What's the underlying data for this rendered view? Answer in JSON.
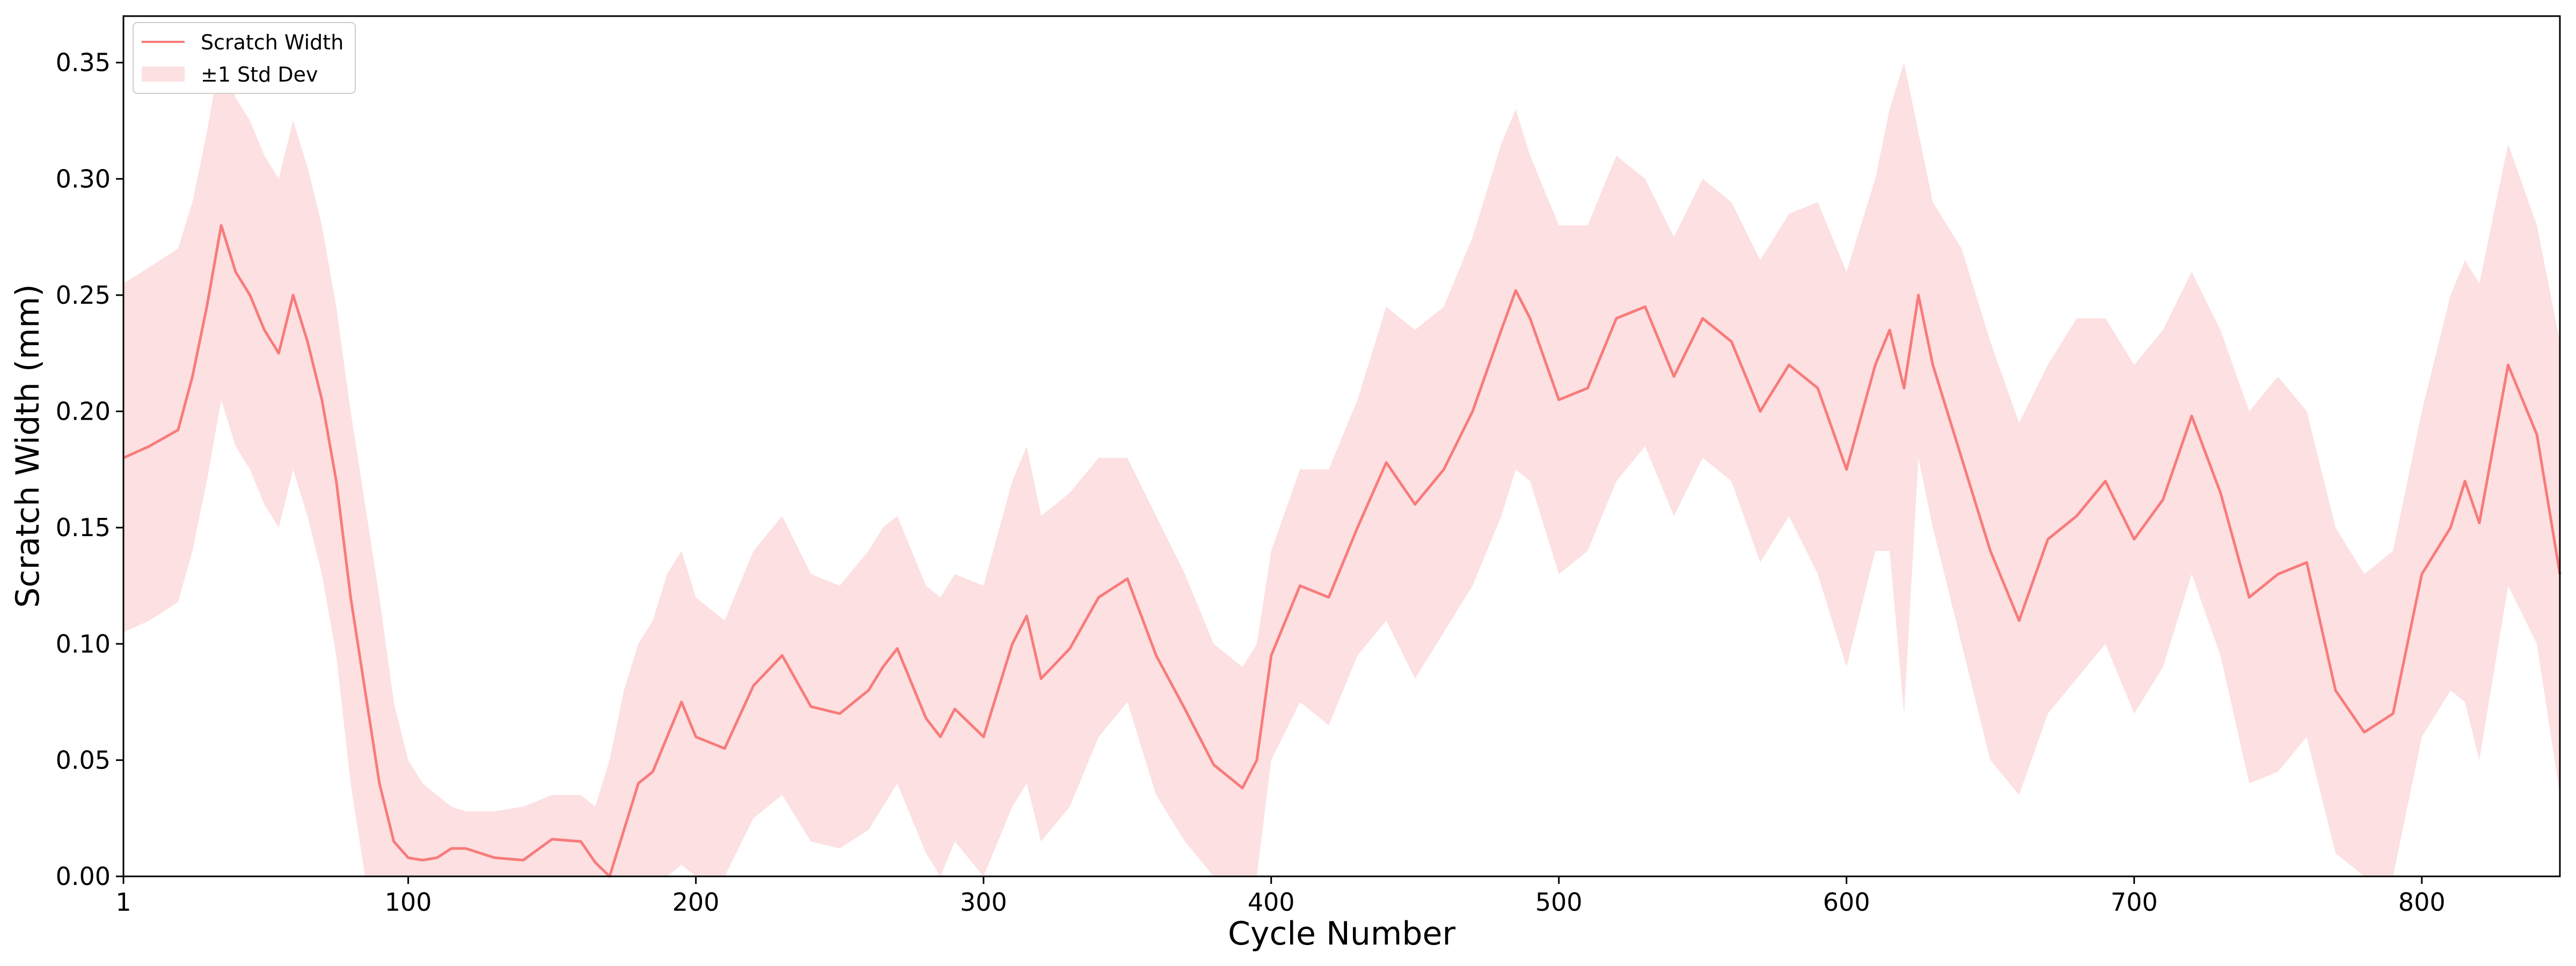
{
  "chart_data": {
    "type": "line",
    "title": "",
    "xlabel": "Cycle Number",
    "ylabel": "Scratch Width (mm)",
    "xlim": [
      1,
      848
    ],
    "ylim": [
      0,
      0.37
    ],
    "x_ticks": [
      1,
      100,
      200,
      300,
      400,
      500,
      600,
      700,
      800
    ],
    "y_ticks": [
      0.0,
      0.05,
      0.1,
      0.15,
      0.2,
      0.25,
      0.3,
      0.35
    ],
    "y_tick_labels": [
      "0.00",
      "0.05",
      "0.10",
      "0.15",
      "0.20",
      "0.25",
      "0.30",
      "0.35"
    ],
    "grid": false,
    "legend_position": "top-left",
    "legend": [
      {
        "label": "Scratch Width",
        "kind": "line"
      },
      {
        "label": "±1 Std Dev",
        "kind": "band"
      }
    ],
    "colors": {
      "line": "#f87b7b",
      "band": "#fde0e1",
      "axis": "#000000"
    },
    "series": [
      {
        "name": "Scratch Width",
        "x": [
          1,
          10,
          20,
          25,
          30,
          35,
          40,
          45,
          50,
          55,
          60,
          65,
          70,
          75,
          80,
          85,
          90,
          95,
          100,
          105,
          110,
          115,
          120,
          130,
          140,
          150,
          160,
          165,
          170,
          175,
          180,
          185,
          190,
          195,
          200,
          210,
          220,
          230,
          240,
          250,
          260,
          265,
          270,
          280,
          285,
          290,
          300,
          310,
          315,
          320,
          330,
          340,
          350,
          360,
          370,
          380,
          390,
          395,
          400,
          410,
          420,
          430,
          440,
          450,
          460,
          470,
          480,
          485,
          490,
          500,
          510,
          520,
          530,
          540,
          550,
          560,
          570,
          580,
          590,
          600,
          610,
          615,
          620,
          625,
          630,
          640,
          650,
          660,
          670,
          680,
          690,
          700,
          710,
          720,
          730,
          740,
          750,
          760,
          770,
          780,
          790,
          800,
          810,
          815,
          820,
          830,
          840,
          848
        ],
        "y": [
          0.18,
          0.185,
          0.192,
          0.215,
          0.245,
          0.28,
          0.26,
          0.25,
          0.235,
          0.225,
          0.25,
          0.23,
          0.205,
          0.17,
          0.12,
          0.08,
          0.04,
          0.015,
          0.008,
          0.007,
          0.008,
          0.012,
          0.012,
          0.008,
          0.007,
          0.016,
          0.015,
          0.006,
          0.0,
          0.02,
          0.04,
          0.045,
          0.06,
          0.075,
          0.06,
          0.055,
          0.082,
          0.095,
          0.073,
          0.07,
          0.08,
          0.09,
          0.098,
          0.068,
          0.06,
          0.072,
          0.06,
          0.1,
          0.112,
          0.085,
          0.098,
          0.12,
          0.128,
          0.095,
          0.072,
          0.048,
          0.038,
          0.05,
          0.095,
          0.125,
          0.12,
          0.15,
          0.178,
          0.16,
          0.175,
          0.2,
          0.235,
          0.252,
          0.24,
          0.205,
          0.21,
          0.24,
          0.245,
          0.215,
          0.24,
          0.23,
          0.2,
          0.22,
          0.21,
          0.175,
          0.22,
          0.235,
          0.21,
          0.25,
          0.22,
          0.18,
          0.14,
          0.11,
          0.145,
          0.155,
          0.17,
          0.145,
          0.162,
          0.198,
          0.165,
          0.12,
          0.13,
          0.135,
          0.08,
          0.062,
          0.07,
          0.13,
          0.15,
          0.17,
          0.152,
          0.22,
          0.19,
          0.13
        ]
      },
      {
        "name": "±1 Std Dev",
        "x": [
          1,
          10,
          20,
          25,
          30,
          35,
          40,
          45,
          50,
          55,
          60,
          65,
          70,
          75,
          80,
          85,
          90,
          95,
          100,
          105,
          110,
          115,
          120,
          130,
          140,
          150,
          160,
          165,
          170,
          175,
          180,
          185,
          190,
          195,
          200,
          210,
          220,
          230,
          240,
          250,
          260,
          265,
          270,
          280,
          285,
          290,
          300,
          310,
          315,
          320,
          330,
          340,
          350,
          360,
          370,
          380,
          390,
          395,
          400,
          410,
          420,
          430,
          440,
          450,
          460,
          470,
          480,
          485,
          490,
          500,
          510,
          520,
          530,
          540,
          550,
          560,
          570,
          580,
          590,
          600,
          610,
          615,
          620,
          625,
          630,
          640,
          650,
          660,
          670,
          680,
          690,
          700,
          710,
          720,
          730,
          740,
          750,
          760,
          770,
          780,
          790,
          800,
          810,
          815,
          820,
          830,
          840,
          848
        ],
        "upper": [
          0.255,
          0.262,
          0.27,
          0.29,
          0.32,
          0.355,
          0.335,
          0.325,
          0.31,
          0.3,
          0.325,
          0.305,
          0.28,
          0.245,
          0.2,
          0.16,
          0.12,
          0.075,
          0.05,
          0.04,
          0.035,
          0.03,
          0.028,
          0.028,
          0.03,
          0.035,
          0.035,
          0.03,
          0.05,
          0.08,
          0.1,
          0.11,
          0.13,
          0.14,
          0.12,
          0.11,
          0.14,
          0.155,
          0.13,
          0.125,
          0.14,
          0.15,
          0.155,
          0.125,
          0.12,
          0.13,
          0.125,
          0.17,
          0.185,
          0.155,
          0.165,
          0.18,
          0.18,
          0.155,
          0.13,
          0.1,
          0.09,
          0.1,
          0.14,
          0.175,
          0.175,
          0.205,
          0.245,
          0.235,
          0.245,
          0.275,
          0.315,
          0.33,
          0.31,
          0.28,
          0.28,
          0.31,
          0.3,
          0.275,
          0.3,
          0.29,
          0.265,
          0.285,
          0.29,
          0.26,
          0.3,
          0.33,
          0.35,
          0.32,
          0.29,
          0.27,
          0.23,
          0.195,
          0.22,
          0.24,
          0.24,
          0.22,
          0.235,
          0.26,
          0.235,
          0.2,
          0.215,
          0.2,
          0.15,
          0.13,
          0.14,
          0.2,
          0.25,
          0.265,
          0.255,
          0.315,
          0.28,
          0.23
        ],
        "lower": [
          0.105,
          0.11,
          0.118,
          0.14,
          0.17,
          0.205,
          0.185,
          0.175,
          0.16,
          0.15,
          0.175,
          0.155,
          0.13,
          0.095,
          0.04,
          0.0,
          0.0,
          0.0,
          0.0,
          0.0,
          0.0,
          0.0,
          0.0,
          0.0,
          0.0,
          0.0,
          0.0,
          0.0,
          0.0,
          0.0,
          0.0,
          0.0,
          0.0,
          0.005,
          0.0,
          0.0,
          0.025,
          0.035,
          0.015,
          0.012,
          0.02,
          0.03,
          0.04,
          0.01,
          0.0,
          0.015,
          0.0,
          0.03,
          0.04,
          0.015,
          0.03,
          0.06,
          0.075,
          0.035,
          0.015,
          0.0,
          0.0,
          0.0,
          0.05,
          0.075,
          0.065,
          0.095,
          0.11,
          0.085,
          0.105,
          0.125,
          0.155,
          0.175,
          0.17,
          0.13,
          0.14,
          0.17,
          0.185,
          0.155,
          0.18,
          0.17,
          0.135,
          0.155,
          0.13,
          0.09,
          0.14,
          0.14,
          0.07,
          0.18,
          0.15,
          0.1,
          0.05,
          0.035,
          0.07,
          0.085,
          0.1,
          0.07,
          0.09,
          0.13,
          0.095,
          0.04,
          0.045,
          0.06,
          0.01,
          0.0,
          0.0,
          0.06,
          0.08,
          0.075,
          0.05,
          0.125,
          0.1,
          0.035
        ]
      }
    ]
  }
}
